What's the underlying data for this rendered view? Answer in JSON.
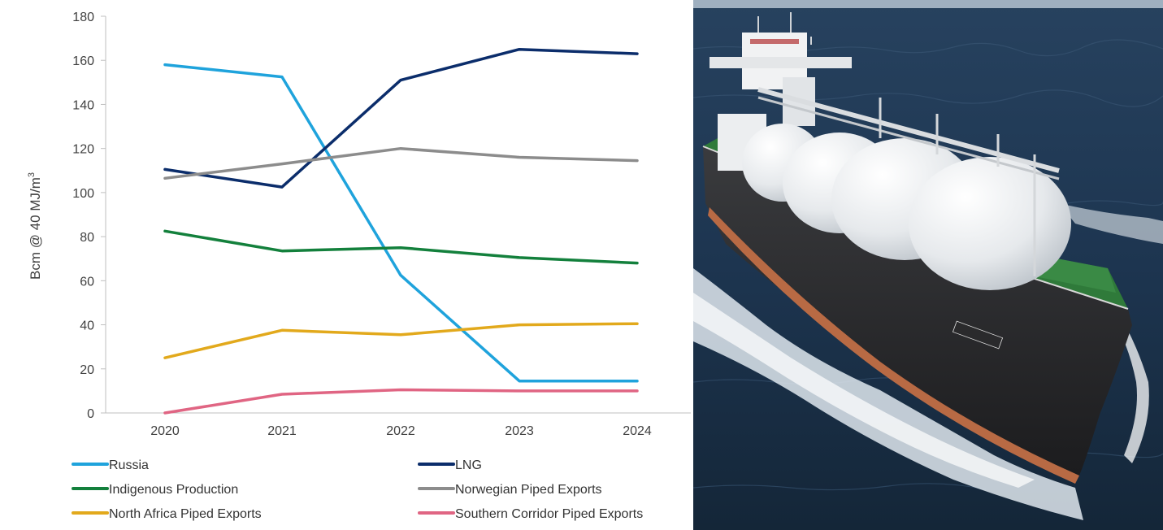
{
  "chart_data": {
    "type": "line",
    "title": "",
    "xlabel": "",
    "ylabel": "Bcm @ 40 MJ/m",
    "ylabel_superscript": "3",
    "categories": [
      "2020",
      "2021",
      "2022",
      "2023",
      "2024"
    ],
    "ylim": [
      0,
      180
    ],
    "yticks": [
      "0",
      "20",
      "40",
      "60",
      "80",
      "100",
      "120",
      "140",
      "160",
      "180"
    ],
    "grid": false,
    "legend_position": "bottom",
    "series": [
      {
        "name": "Russia",
        "color": "#1fa3dc",
        "values": [
          158,
          152.5,
          62.5,
          14.5,
          14.5
        ]
      },
      {
        "name": "LNG",
        "color": "#0b2d6b",
        "values": [
          110.5,
          102.5,
          151,
          165,
          163
        ]
      },
      {
        "name": "Indigenous Production",
        "color": "#13803c",
        "values": [
          82.5,
          73.5,
          75,
          70.5,
          68
        ]
      },
      {
        "name": "Norwegian Piped Exports",
        "color": "#8c8c8c",
        "values": [
          106.5,
          113,
          120,
          116,
          114.5
        ]
      },
      {
        "name": "North Africa Piped Exports",
        "color": "#e2a91c",
        "values": [
          25,
          37.5,
          35.5,
          40,
          40.5
        ]
      },
      {
        "name": "Southern Corridor Piped Exports",
        "color": "#e06583",
        "values": [
          0,
          8.5,
          10.5,
          10,
          10
        ]
      }
    ]
  },
  "photo": {
    "subject": "lng-carrier-ship-at-sea",
    "colors": {
      "sea": "#1d3550",
      "hull": "#2a2a2c",
      "deck": "#2f7a3a",
      "tank": "#e8eaec"
    }
  }
}
